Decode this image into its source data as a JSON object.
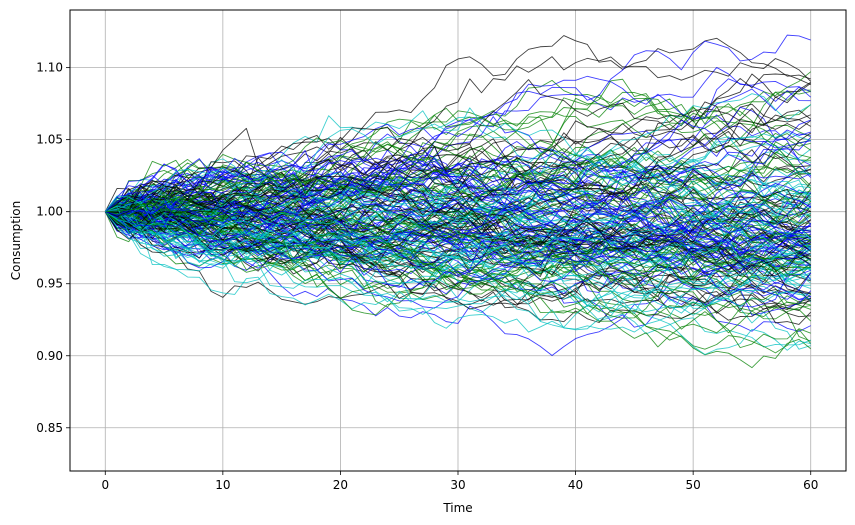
{
  "chart_data": {
    "type": "line",
    "title": "",
    "xlabel": "Time",
    "ylabel": "Consumption",
    "xlim": [
      -3,
      63
    ],
    "ylim": [
      0.82,
      1.14
    ],
    "xticks": [
      0,
      10,
      20,
      30,
      40,
      50,
      60
    ],
    "xtick_labels": [
      "0",
      "10",
      "20",
      "30",
      "40",
      "50",
      "60"
    ],
    "yticks": [
      0.85,
      0.9,
      0.95,
      1.0,
      1.05,
      1.1
    ],
    "ytick_labels": [
      "0.85",
      "0.90",
      "0.95",
      "1.00",
      "1.05",
      "1.10"
    ],
    "grid": true,
    "legend": "none",
    "colors": [
      "#000000",
      "#0000ff",
      "#008000",
      "#00c0c0"
    ],
    "n_paths": 200,
    "n_steps": 60,
    "start_value": 1.0,
    "drift": 0.0,
    "volatility": 0.0058,
    "random_seed": 7,
    "line_alpha": 0.75,
    "line_width": 0.9
  }
}
